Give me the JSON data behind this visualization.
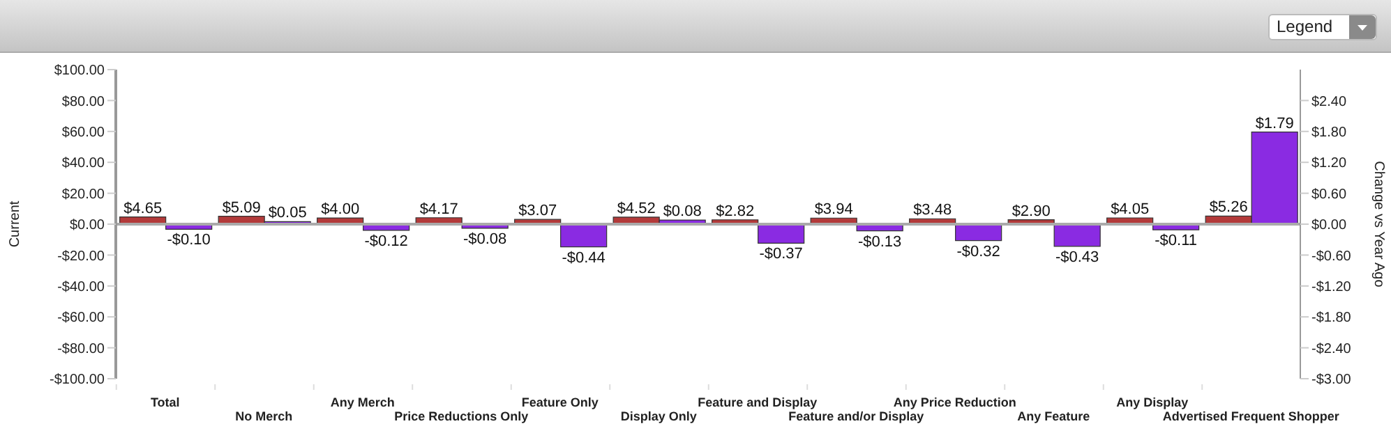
{
  "chart_data": {
    "type": "bar",
    "annotations": [
      "Legend"
    ],
    "categories": [
      "Total",
      "No Merch",
      "Any Merch",
      "Price Reductions Only",
      "Feature Only",
      "Display Only",
      "Feature and Display",
      "Feature and/or Display",
      "Any Price Reduction",
      "Any Feature",
      "Any Display",
      "Advertised Frequent Shopper"
    ],
    "series": [
      {
        "color": "#b33a3a",
        "values": [
          4.65,
          5.09,
          4.0,
          4.17,
          3.07,
          4.52,
          2.82,
          3.94,
          3.48,
          2.9,
          4.05,
          5.26
        ],
        "value_labels": [
          "$4.65",
          "$5.09",
          "$4.00",
          "$4.17",
          "$3.07",
          "$4.52",
          "$2.82",
          "$3.94",
          "$3.48",
          "$2.90",
          "$4.05",
          "$5.26"
        ]
      },
      {
        "color": "#8a2be2",
        "axis": "y2",
        "values": [
          -0.1,
          0.05,
          -0.12,
          -0.08,
          -0.44,
          0.08,
          -0.37,
          -0.13,
          -0.32,
          -0.43,
          -0.11,
          1.79
        ],
        "value_labels": [
          "-$0.10",
          "$0.05",
          "-$0.12",
          "-$0.08",
          "-$0.44",
          "$0.08",
          "-$0.37",
          "-$0.13",
          "-$0.32",
          "-$0.43",
          "-$0.11",
          "$1.79"
        ]
      }
    ],
    "ylabel": "Current",
    "y2label": "Change vs Year Ago",
    "ylim": [
      -100,
      100
    ],
    "yticks": [
      {
        "value": -100,
        "label": "-$100.00"
      },
      {
        "value": -80,
        "label": "-$80.00"
      },
      {
        "value": -60,
        "label": "-$60.00"
      },
      {
        "value": -40,
        "label": "-$40.00"
      },
      {
        "value": -20,
        "label": "-$20.00"
      },
      {
        "value": 0,
        "label": "$0.00"
      },
      {
        "value": 20,
        "label": "$20.00"
      },
      {
        "value": 40,
        "label": "$40.00"
      },
      {
        "value": 60,
        "label": "$60.00"
      },
      {
        "value": 80,
        "label": "$80.00"
      },
      {
        "value": 100,
        "label": "$100.00"
      }
    ],
    "y2lim": [
      -3,
      3
    ],
    "y2ticks": [
      {
        "value": -3,
        "label": "-$3.00"
      },
      {
        "value": -2.4,
        "label": "-$2.40"
      },
      {
        "value": -1.8,
        "label": "-$1.80"
      },
      {
        "value": -1.2,
        "label": "-$1.20"
      },
      {
        "value": -0.6,
        "label": "-$0.60"
      },
      {
        "value": 0,
        "label": "$0.00"
      },
      {
        "value": 0.6,
        "label": "$0.60"
      },
      {
        "value": 1.2,
        "label": "$1.20"
      },
      {
        "value": 1.8,
        "label": "$1.80"
      },
      {
        "value": 2.4,
        "label": "$2.40"
      }
    ],
    "ref_lines": [
      {
        "axis": "y",
        "value": 0,
        "color": "#aaaaaa"
      }
    ]
  }
}
